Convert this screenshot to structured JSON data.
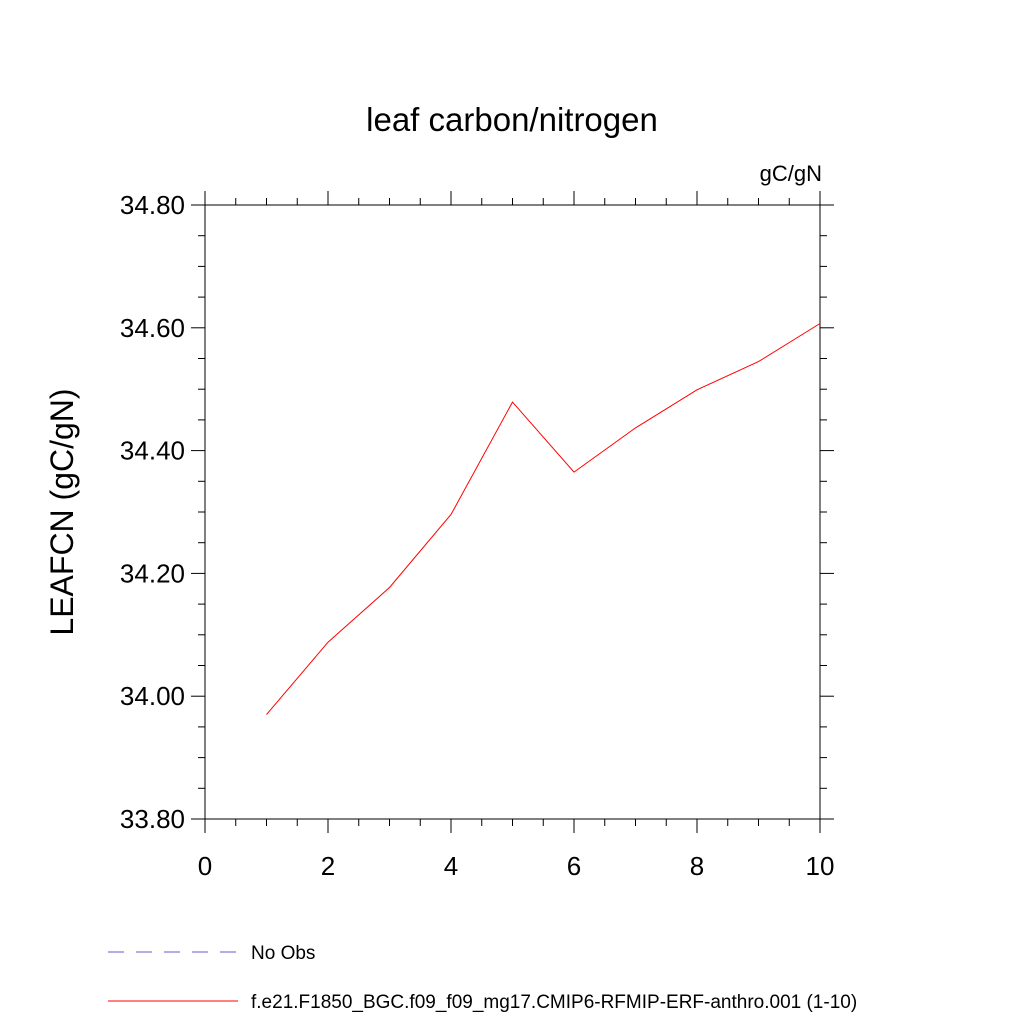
{
  "chart_data": {
    "type": "line",
    "title": "leaf carbon/nitrogen",
    "units_label": "gC/gN",
    "ylabel": "LEAFCN  (gC/gN)",
    "xlabel": "",
    "xlim": [
      0,
      10
    ],
    "ylim": [
      33.8,
      34.8
    ],
    "x_ticks": [
      "0",
      "2",
      "4",
      "6",
      "8",
      "10"
    ],
    "y_ticks": [
      "33.80",
      "34.00",
      "34.20",
      "34.40",
      "34.60",
      "34.80"
    ],
    "grid": false,
    "series": [
      {
        "name": "f.e21.F1850_BGC.f09_f09_mg17.CMIP6-RFMIP-ERF-anthro.001 (1-10)",
        "color": "#ff0000",
        "x": [
          1,
          2,
          3,
          4,
          5,
          6,
          7,
          8,
          9,
          10
        ],
        "y": [
          33.97,
          34.088,
          34.177,
          34.296,
          34.479,
          34.365,
          34.437,
          34.499,
          34.545,
          34.607
        ]
      }
    ],
    "legend": {
      "placement": "bottom-left",
      "entries": [
        {
          "label": "No Obs",
          "color": "#6a5acd",
          "style": "dashed"
        },
        {
          "label": "f.e21.F1850_BGC.f09_f09_mg17.CMIP6-RFMIP-ERF-anthro.001 (1-10)",
          "color": "#ff0000",
          "style": "solid"
        }
      ]
    }
  }
}
